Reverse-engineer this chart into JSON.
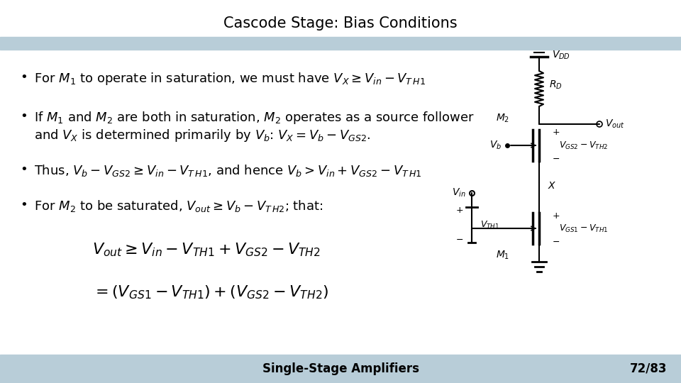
{
  "title": "Cascode Stage: Bias Conditions",
  "title_fontsize": 15,
  "background_color": "#ffffff",
  "header_bar_color": "#b8cdd8",
  "footer_bar_color": "#b8cdd8",
  "footer_left": "Single-Stage Amplifiers",
  "footer_right": "72/83",
  "footer_fontsize": 12,
  "text_color": "#000000",
  "bullet_fontsize": 13,
  "eq_fontsize": 16
}
